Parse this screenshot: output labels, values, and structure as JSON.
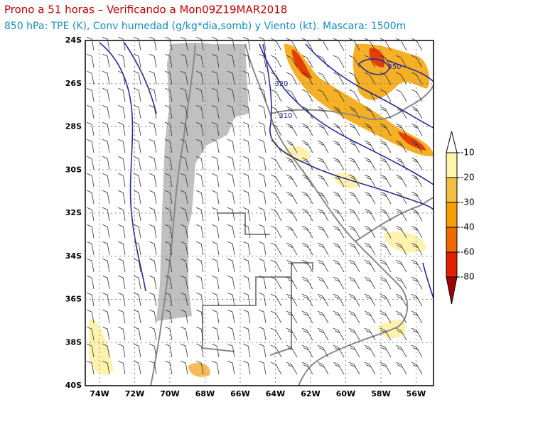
{
  "header": {
    "title": "Prono a 51 horas – Verificando a Mon09Z19MAR2018",
    "subtitle": "850 hPa: TPE (K), Conv humedad (g/kg*dia,somb) y Viento (kt). Mascara: 1500m"
  },
  "map": {
    "lat_labels": [
      "24S",
      "26S",
      "28S",
      "30S",
      "32S",
      "34S",
      "36S",
      "38S",
      "40S"
    ],
    "lon_labels": [
      "74W",
      "72W",
      "70W",
      "68W",
      "66W",
      "64W",
      "62W",
      "60W",
      "58W",
      "56W"
    ],
    "contour_labels": [
      "350",
      "320",
      "310"
    ]
  },
  "colorbar": {
    "labels": [
      "-10",
      "-20",
      "-30",
      "-40",
      "-60",
      "-80"
    ]
  }
}
